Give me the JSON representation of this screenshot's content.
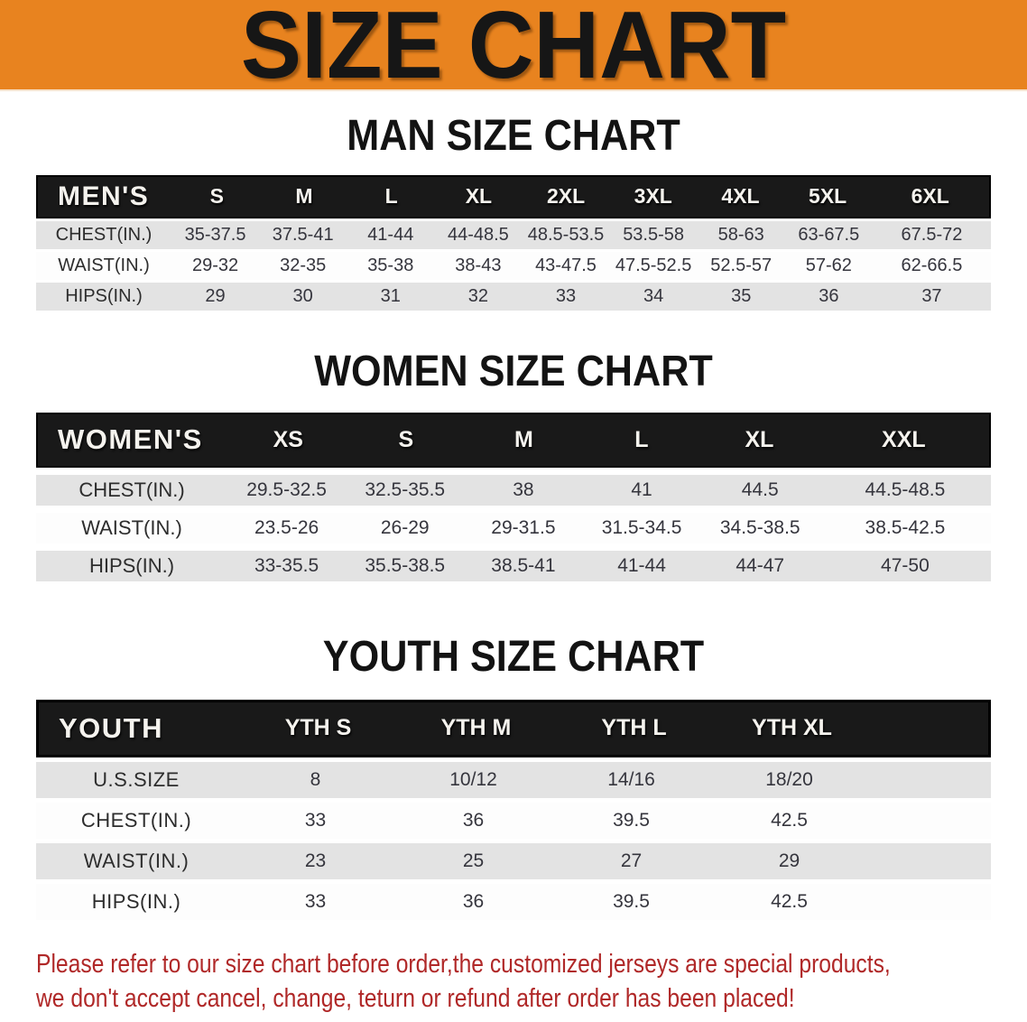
{
  "banner": {
    "title": "SIZE CHART",
    "bg_color": "#e8831f",
    "text_color": "#161616"
  },
  "sections": [
    {
      "id": "men",
      "title": "MAN SIZE CHART",
      "table": {
        "header_label": "MEN'S",
        "columns": [
          "S",
          "M",
          "L",
          "XL",
          "2XL",
          "3XL",
          "4XL",
          "5XL",
          "6XL"
        ],
        "filler": false,
        "rows": [
          {
            "key": "chest",
            "label": "CHEST(IN.)",
            "shade": "gray",
            "values": [
              "35-37.5",
              "37.5-41",
              "41-44",
              "44-48.5",
              "48.5-53.5",
              "53.5-58",
              "58-63",
              "63-67.5",
              "67.5-72"
            ]
          },
          {
            "key": "waist",
            "label": "WAIST(IN.)",
            "shade": "white",
            "values": [
              "29-32",
              "32-35",
              "35-38",
              "38-43",
              "43-47.5",
              "47.5-52.5",
              "52.5-57",
              "57-62",
              "62-66.5"
            ]
          },
          {
            "key": "hips",
            "label": "HIPS(IN.)",
            "shade": "gray",
            "values": [
              "29",
              "30",
              "31",
              "32",
              "33",
              "34",
              "35",
              "36",
              "37"
            ]
          }
        ]
      }
    },
    {
      "id": "women",
      "title": "WOMEN SIZE CHART",
      "table": {
        "header_label": "WOMEN'S",
        "columns": [
          "XS",
          "S",
          "M",
          "L",
          "XL",
          "XXL"
        ],
        "filler": false,
        "rows": [
          {
            "key": "chest",
            "label": "CHEST(IN.)",
            "shade": "gray",
            "values": [
              "29.5-32.5",
              "32.5-35.5",
              "38",
              "41",
              "44.5",
              "44.5-48.5"
            ]
          },
          {
            "key": "waist",
            "label": "WAIST(IN.)",
            "shade": "white",
            "values": [
              "23.5-26",
              "26-29",
              "29-31.5",
              "31.5-34.5",
              "34.5-38.5",
              "38.5-42.5"
            ]
          },
          {
            "key": "hips",
            "label": "HIPS(IN.)",
            "shade": "gray",
            "values": [
              "33-35.5",
              "35.5-38.5",
              "38.5-41",
              "41-44",
              "44-47",
              "47-50"
            ]
          }
        ]
      }
    },
    {
      "id": "youth",
      "title": "YOUTH SIZE CHART",
      "table": {
        "header_label": "YOUTH",
        "columns": [
          "YTH S",
          "YTH M",
          "YTH L",
          "YTH XL"
        ],
        "filler": true,
        "rows": [
          {
            "key": "us-size",
            "label": "U.S.SIZE",
            "shade": "gray",
            "values": [
              "8",
              "10/12",
              "14/16",
              "18/20"
            ]
          },
          {
            "key": "chest",
            "label": "CHEST(IN.)",
            "shade": "white",
            "values": [
              "33",
              "36",
              "39.5",
              "42.5"
            ]
          },
          {
            "key": "waist",
            "label": "WAIST(IN.)",
            "shade": "gray",
            "values": [
              "23",
              "25",
              "27",
              "29"
            ]
          },
          {
            "key": "hips",
            "label": "HIPS(IN.)",
            "shade": "white",
            "values": [
              "33",
              "36",
              "39.5",
              "42.5"
            ]
          }
        ]
      }
    }
  ],
  "table_style": {
    "header_bar_color": "#191919",
    "row_gray_color": "#e3e3e3",
    "row_white_color": "#fdfdfd"
  },
  "disclaimer": {
    "color": "#b02828",
    "lines": [
      "Please refer to our size chart before order,the customized jerseys are special products,",
      "we don't accept cancel, change, teturn or refund after order has been placed!"
    ]
  }
}
